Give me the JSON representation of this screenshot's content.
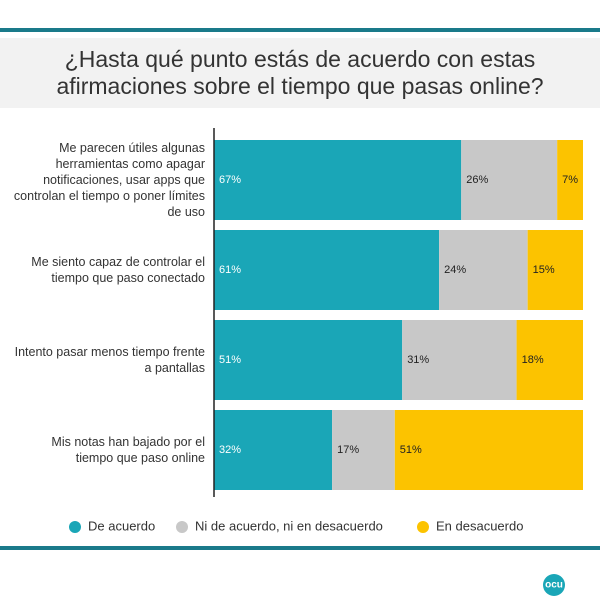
{
  "chart_data": {
    "type": "stacked-bar-horizontal",
    "title": "¿Hasta qué punto estás de acuerdo con estas afirmaciones sobre el tiempo que pasas online?",
    "categories": [
      "Me parecen útiles algunas herramientas como apagar notificaciones, usar apps que controlan el tiempo o poner límites de uso",
      "Me siento capaz de controlar el tiempo que paso conectado",
      "Intento pasar menos tiempo frente a pantallas",
      "Mis notas han bajado por el tiempo que paso online"
    ],
    "series": [
      {
        "name": "De acuerdo",
        "color": "#1aa6b7",
        "values": [
          67,
          61,
          51,
          32
        ],
        "value_labels": [
          "67%",
          "61%",
          "51%",
          "32%"
        ]
      },
      {
        "name": "Ni de acuerdo, ni en desacuerdo",
        "color": "#c8c8c8",
        "values": [
          26,
          24,
          31,
          17
        ],
        "value_labels": [
          "26%",
          "24%",
          "31%",
          "17%"
        ]
      },
      {
        "name": "En desacuerdo",
        "color": "#fcc300",
        "values": [
          7,
          15,
          18,
          51
        ],
        "value_labels": [
          "7%",
          "15%",
          "18%",
          "51%"
        ]
      }
    ],
    "xlim": [
      0,
      100
    ],
    "logo": "ocu"
  }
}
